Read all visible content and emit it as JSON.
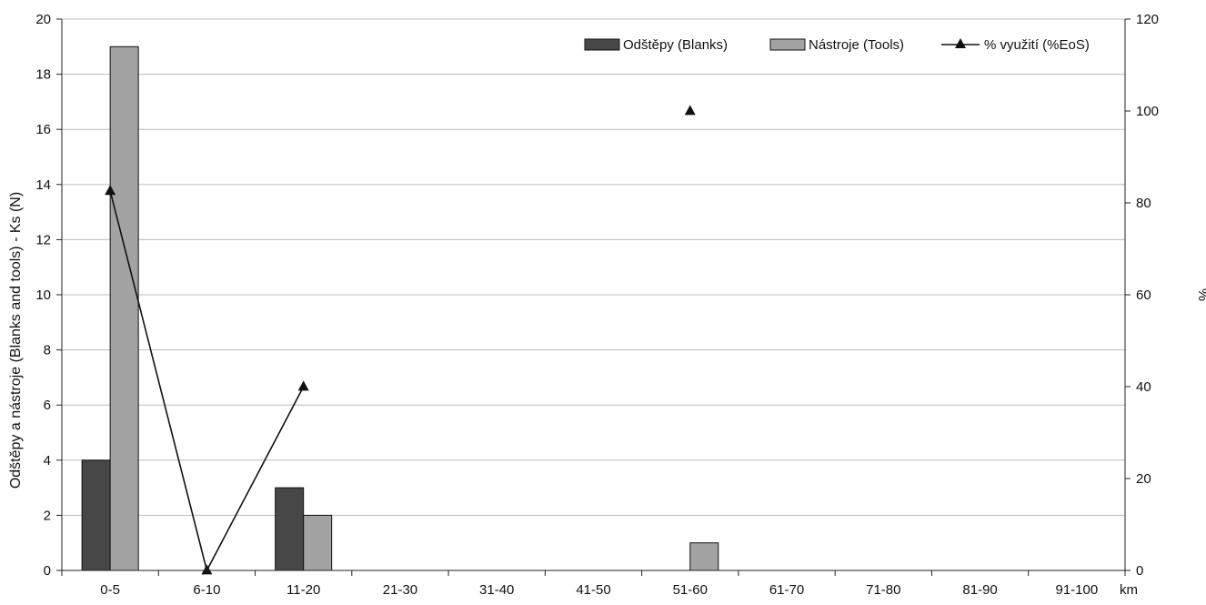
{
  "chart_data": {
    "type": "bar",
    "categories": [
      "0-5",
      "6-10",
      "11-20",
      "21-30",
      "31-40",
      "41-50",
      "51-60",
      "61-70",
      "71-80",
      "81-90",
      "91-100"
    ],
    "x_unit": "km",
    "series": [
      {
        "name": "Odštěpy (Blanks)",
        "kind": "bar",
        "axis": "left",
        "color": "#474747",
        "values": [
          4,
          0,
          3,
          0,
          0,
          0,
          0,
          0,
          0,
          0,
          0
        ]
      },
      {
        "name": "Nástroje (Tools)",
        "kind": "bar",
        "axis": "left",
        "color": "#a3a3a3",
        "values": [
          19,
          0,
          2,
          0,
          0,
          0,
          1,
          0,
          0,
          0,
          0
        ]
      },
      {
        "name": "% využití (%EoS)",
        "kind": "line",
        "axis": "right",
        "color": "#111111",
        "marker": "triangle",
        "values": [
          82.6,
          0,
          40,
          null,
          null,
          null,
          100,
          null,
          null,
          null,
          null
        ]
      }
    ],
    "ylabel": "Odštěpy a nástroje (Blanks and tools) - Ks (N)",
    "ylim": [
      0,
      20
    ],
    "yticks": [
      "0",
      "2",
      "4",
      "6",
      "8",
      "10",
      "12",
      "14",
      "16",
      "18",
      "20"
    ],
    "y2label": "%",
    "y2lim": [
      0,
      120
    ],
    "y2ticks": [
      "0",
      "20",
      "40",
      "60",
      "80",
      "100",
      "120"
    ],
    "grid": true,
    "legend_position": "top-right"
  }
}
